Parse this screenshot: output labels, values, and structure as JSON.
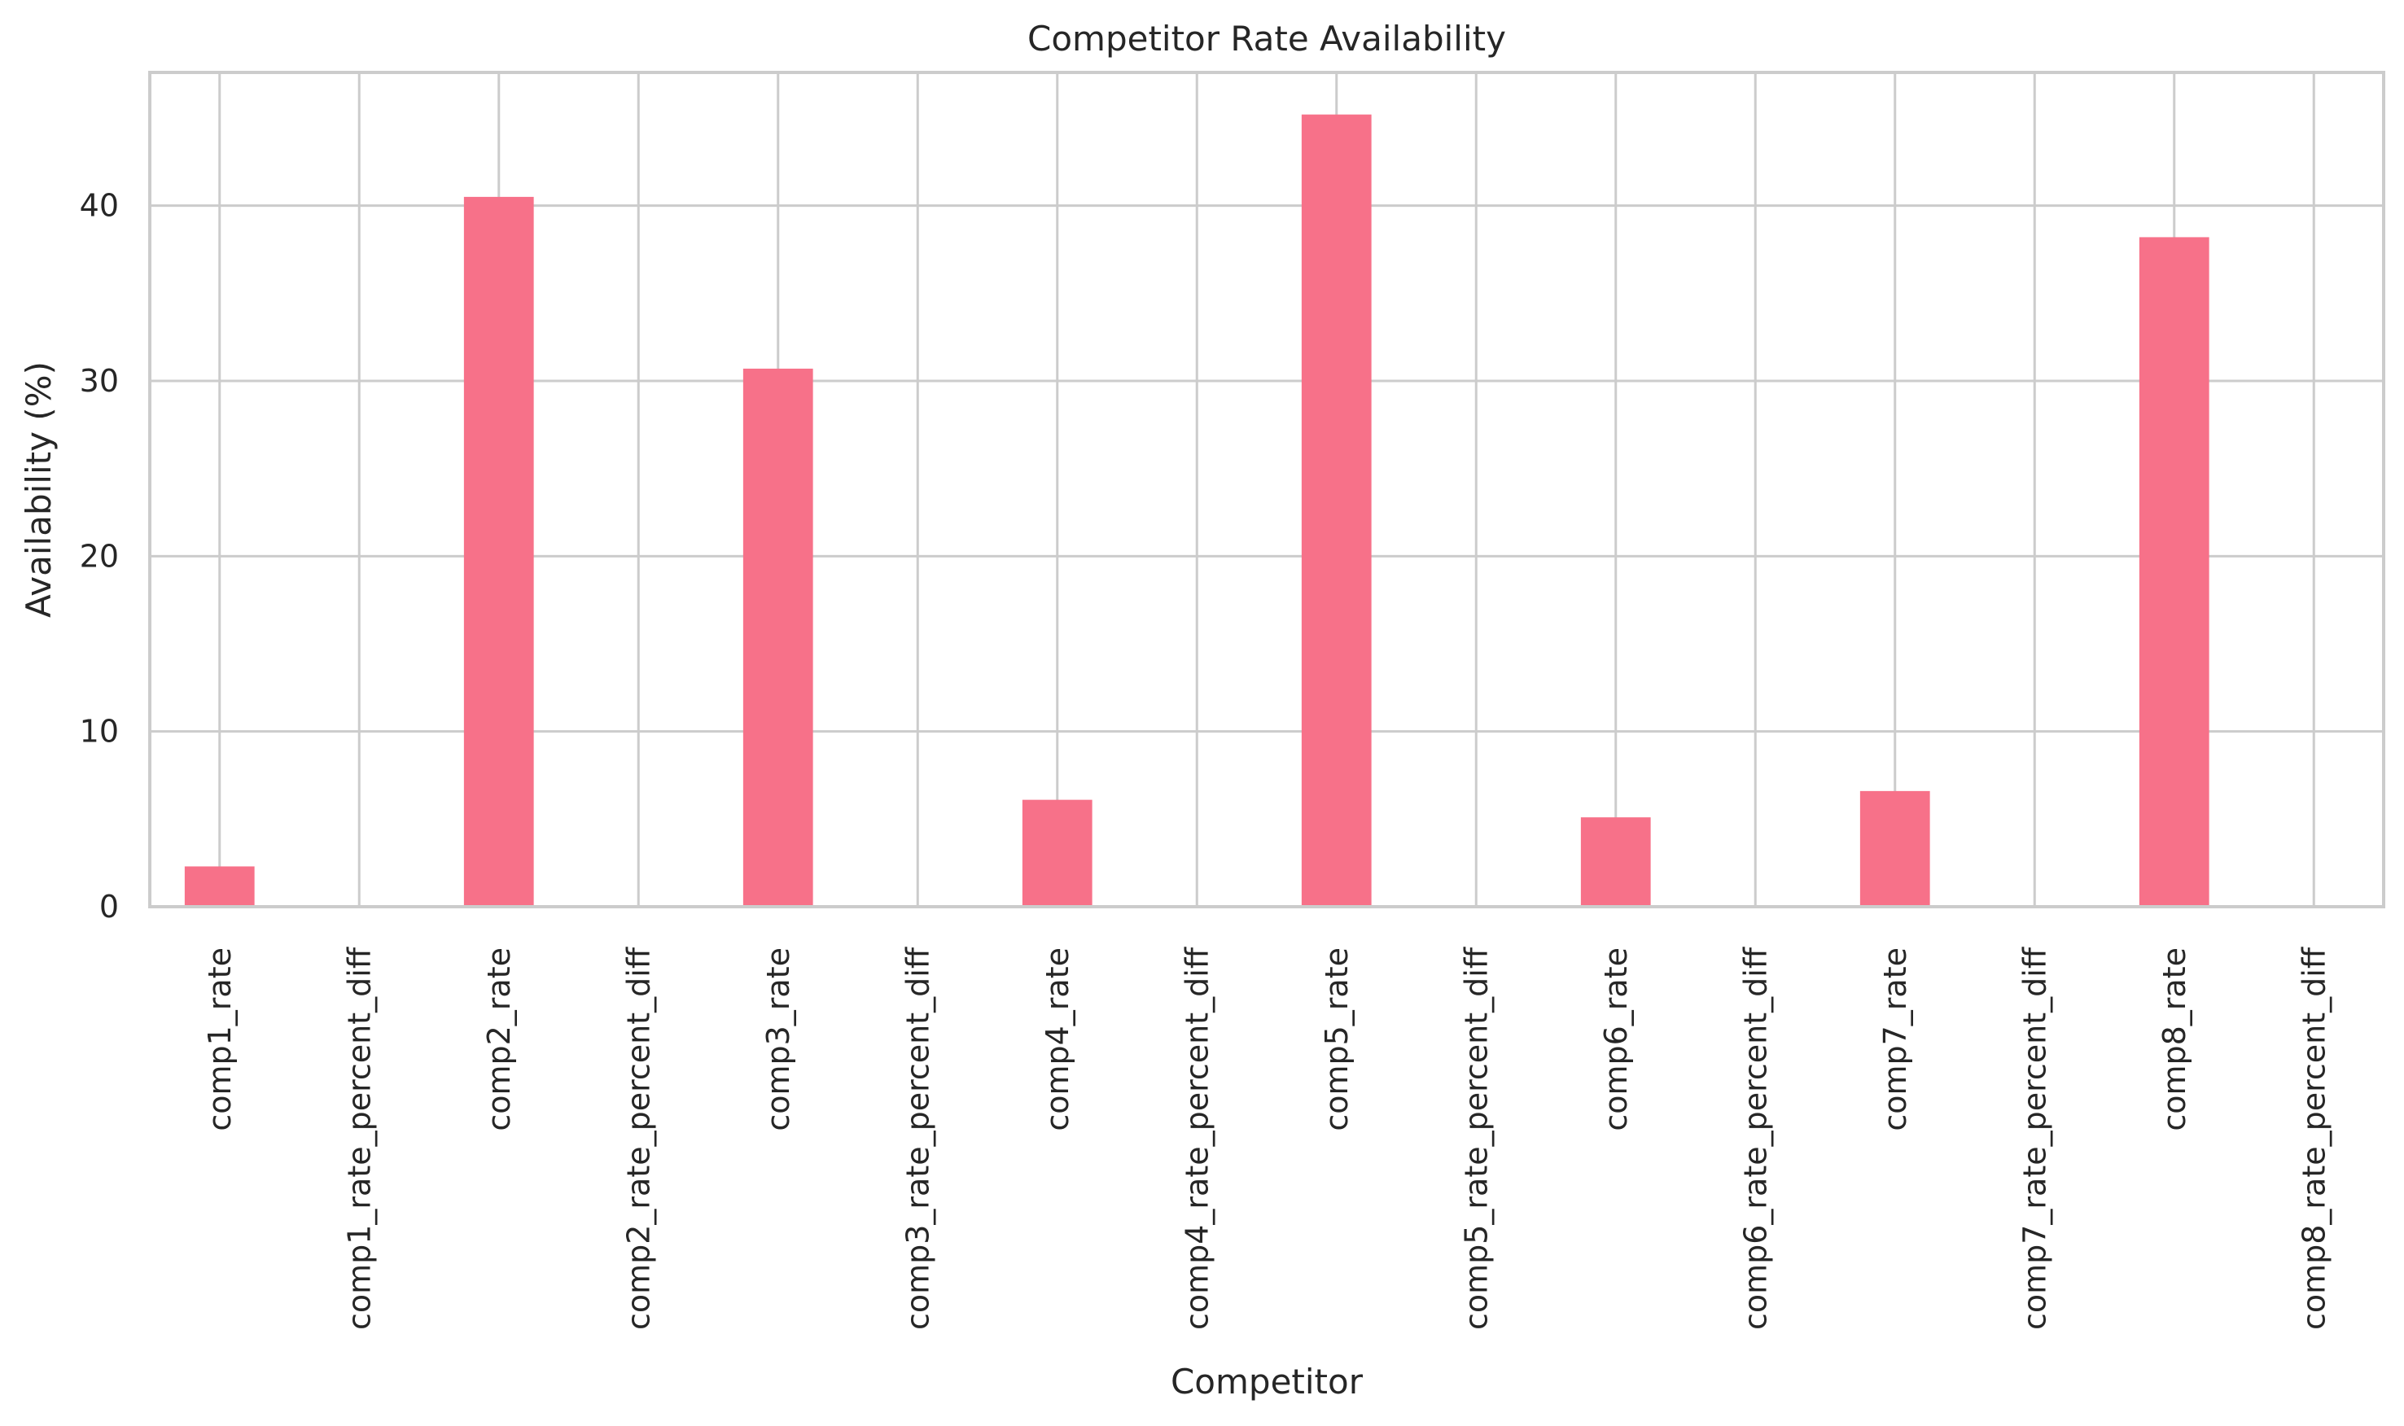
{
  "chart_data": {
    "type": "bar",
    "title": "Competitor Rate Availability",
    "xlabel": "Competitor",
    "ylabel": "Availability (%)",
    "ylim": [
      0,
      47.6
    ],
    "yticks": [
      0,
      10,
      20,
      30,
      40
    ],
    "grid": true,
    "bar_color": "#f77189",
    "grid_color": "#cccccc",
    "categories": [
      "comp1_rate",
      "comp1_rate_percent_diff",
      "comp2_rate",
      "comp2_rate_percent_diff",
      "comp3_rate",
      "comp3_rate_percent_diff",
      "comp4_rate",
      "comp4_rate_percent_diff",
      "comp5_rate",
      "comp5_rate_percent_diff",
      "comp6_rate",
      "comp6_rate_percent_diff",
      "comp7_rate",
      "comp7_rate_percent_diff",
      "comp8_rate",
      "comp8_rate_percent_diff"
    ],
    "values": [
      2.3,
      0,
      40.5,
      0,
      30.7,
      0,
      6.1,
      0,
      45.2,
      0,
      5.1,
      0,
      6.6,
      0,
      38.2,
      0
    ]
  }
}
